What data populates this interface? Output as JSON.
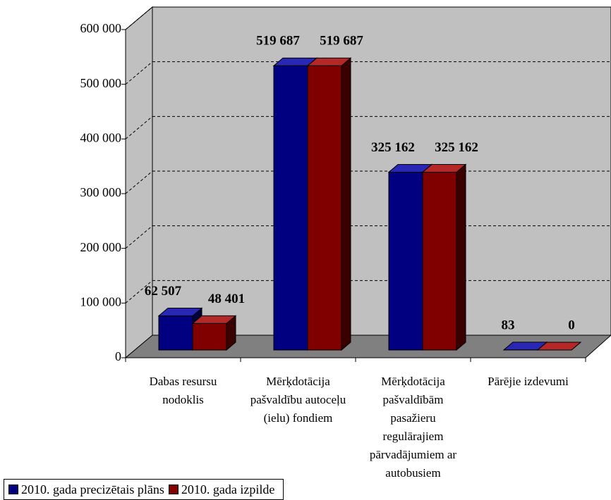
{
  "chart_data": {
    "type": "bar3d",
    "categories": [
      "Dabas resursu nodoklis",
      "Mērķdotācija pašvaldību autoceļu (ielu) fondiem",
      "Mērķdotācija pašvaldībām pasažieru regulārajiem pārvadājumiem ar autobusiem",
      "Pārējie izdevumi"
    ],
    "series": [
      {
        "name": "2010. gada precizētais plāns",
        "color": "#000080",
        "values": [
          62507,
          519687,
          325162,
          83
        ],
        "value_labels": [
          "62 507",
          "519 687",
          "325 162",
          "83"
        ]
      },
      {
        "name": "2010. gada izpilde",
        "color": "#800000",
        "values": [
          48401,
          519687,
          325162,
          0
        ],
        "value_labels": [
          "48 401",
          "519 687",
          "325 162",
          "0"
        ]
      }
    ],
    "ylim": [
      0,
      600000
    ],
    "yticks": [
      0,
      {
        "value": 100000,
        "label": "100 000"
      },
      {
        "value": 200000,
        "label": "200 000"
      },
      {
        "value": 300000,
        "label": "300 000"
      },
      {
        "value": 400000,
        "label": "400 000"
      },
      {
        "value": 500000,
        "label": "500 000"
      },
      {
        "value": 600000,
        "label": "600 000"
      }
    ],
    "grid": true,
    "legend": "bottom-left"
  }
}
